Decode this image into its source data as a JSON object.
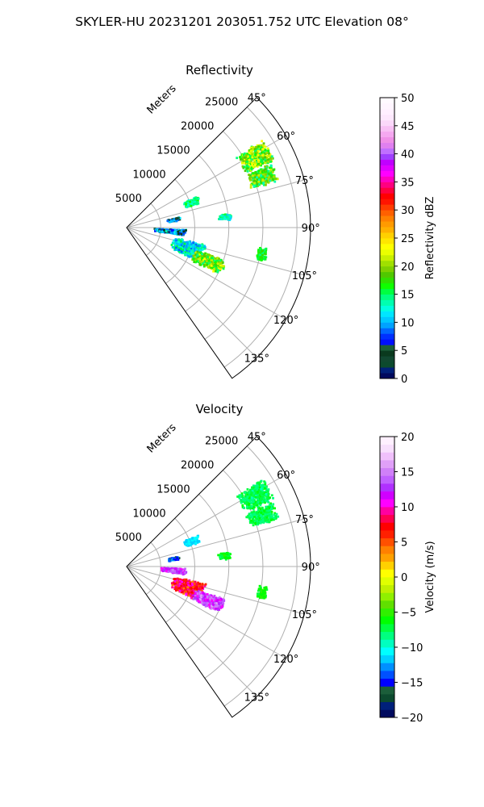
{
  "figure": {
    "suptitle": "SKYLER-HU  20231201  203051.752 UTC Elevation 08°"
  },
  "chart_data": [
    {
      "type": "heatmap",
      "title": "Reflectivity",
      "projection": "polar sector",
      "range_axis_label": "Meters",
      "range_ticks": [
        5000,
        10000,
        15000,
        20000,
        25000
      ],
      "range_limit": [
        0,
        27000
      ],
      "azimuth_limit_deg": [
        45,
        145
      ],
      "azimuth_ticks": [
        "45°",
        "60°",
        "75°",
        "90°",
        "105°",
        "120°",
        "135°"
      ],
      "azimuth_tick_values": [
        45,
        60,
        75,
        90,
        105,
        120,
        135
      ],
      "grid": true,
      "colorbar": {
        "label": "Reflectivity dBZ",
        "range": [
          0,
          50
        ],
        "ticks": [
          "0",
          "5",
          "10",
          "15",
          "20",
          "25",
          "30",
          "35",
          "40",
          "45",
          "50"
        ]
      },
      "echo_regions": [
        {
          "azimuth_deg": [
            57,
            66
          ],
          "range_m": [
            19000,
            24000
          ],
          "value_dbz": [
            14,
            24
          ]
        },
        {
          "azimuth_deg": [
            66,
            73
          ],
          "range_m": [
            19000,
            23500
          ],
          "value_dbz": [
            13,
            22
          ]
        },
        {
          "azimuth_deg": [
            66,
            72
          ],
          "range_m": [
            9000,
            11500
          ],
          "value_dbz": [
            12,
            17
          ]
        },
        {
          "azimuth_deg": [
            79,
            83
          ],
          "range_m": [
            6000,
            8000
          ],
          "value_dbz": [
            3,
            12
          ]
        },
        {
          "azimuth_deg": [
            82,
            86
          ],
          "range_m": [
            13500,
            15500
          ],
          "value_dbz": [
            10,
            17
          ]
        },
        {
          "azimuth_deg": [
            92,
            98
          ],
          "range_m": [
            4000,
            9000
          ],
          "value_dbz": [
            4,
            14
          ]
        },
        {
          "azimuth_deg": [
            102,
            116
          ],
          "range_m": [
            7000,
            12000
          ],
          "value_dbz": [
            8,
            16
          ]
        },
        {
          "azimuth_deg": [
            108,
            117
          ],
          "range_m": [
            10500,
            15500
          ],
          "value_dbz": [
            14,
            24
          ]
        },
        {
          "azimuth_deg": [
            98,
            104
          ],
          "range_m": [
            19500,
            21000
          ],
          "value_dbz": [
            14,
            18
          ]
        }
      ]
    },
    {
      "type": "heatmap",
      "title": "Velocity",
      "projection": "polar sector",
      "range_axis_label": "Meters",
      "range_ticks": [
        5000,
        10000,
        15000,
        20000,
        25000
      ],
      "range_limit": [
        0,
        27000
      ],
      "azimuth_limit_deg": [
        45,
        145
      ],
      "azimuth_ticks": [
        "45°",
        "60°",
        "75°",
        "90°",
        "105°",
        "120°",
        "135°"
      ],
      "azimuth_tick_values": [
        45,
        60,
        75,
        90,
        105,
        120,
        135
      ],
      "grid": true,
      "colorbar": {
        "label": "Velocity (m/s)",
        "range": [
          -20,
          20
        ],
        "ticks": [
          "−20",
          "−15",
          "−10",
          "−5",
          "0",
          "5",
          "10",
          "15",
          "20"
        ]
      },
      "echo_regions": [
        {
          "azimuth_deg": [
            57,
            66
          ],
          "range_m": [
            19000,
            24000
          ],
          "value_ms": [
            -9,
            -6
          ]
        },
        {
          "azimuth_deg": [
            66,
            73
          ],
          "range_m": [
            19000,
            23500
          ],
          "value_ms": [
            -9,
            -6
          ]
        },
        {
          "azimuth_deg": [
            66,
            72
          ],
          "range_m": [
            9000,
            11500
          ],
          "value_ms": [
            -12,
            -10
          ]
        },
        {
          "azimuth_deg": [
            79,
            83
          ],
          "range_m": [
            6000,
            8000
          ],
          "value_ms": [
            -17,
            -12
          ]
        },
        {
          "azimuth_deg": [
            82,
            86
          ],
          "range_m": [
            13500,
            15500
          ],
          "value_ms": [
            -8,
            -5
          ]
        },
        {
          "azimuth_deg": [
            92,
            98
          ],
          "range_m": [
            5000,
            9000
          ],
          "value_ms": [
            10,
            15
          ]
        },
        {
          "azimuth_deg": [
            102,
            116
          ],
          "range_m": [
            7000,
            12000
          ],
          "value_ms": [
            4,
            11
          ]
        },
        {
          "azimuth_deg": [
            108,
            117
          ],
          "range_m": [
            10500,
            15500
          ],
          "value_ms": [
            10,
            16
          ]
        },
        {
          "azimuth_deg": [
            98,
            104
          ],
          "range_m": [
            19500,
            21000
          ],
          "value_ms": [
            -7,
            -5
          ]
        }
      ]
    }
  ],
  "colors": {
    "grid": "#b0b0b0",
    "frame": "#000000",
    "reflectivity_scale": [
      "#000a5e",
      "#00207a",
      "#0c4a2e",
      "#114830",
      "#0a3a1e",
      "#1b5e3a",
      "#000fff",
      "#0030ff",
      "#0066ff",
      "#00a2ff",
      "#00c8ff",
      "#00e6ff",
      "#00ffe0",
      "#00ffb0",
      "#00ff80",
      "#00ff40",
      "#10ff00",
      "#30e000",
      "#50c800",
      "#7ed000",
      "#a0e000",
      "#c8f000",
      "#eaff00",
      "#ffff00",
      "#ffe600",
      "#ffd000",
      "#ffb000",
      "#ff9a00",
      "#ff8000",
      "#ff6000",
      "#ff3c00",
      "#ff1400",
      "#ff0000",
      "#ff0040",
      "#ff0080",
      "#ff00c0",
      "#ff00ff",
      "#e000ff",
      "#c000ff",
      "#a040ff",
      "#c070ff",
      "#e080f0",
      "#f090e8",
      "#f5a8f0",
      "#f8c0f5",
      "#fbd8fa",
      "#fde8fd",
      "#fff0ff",
      "#fff5ff",
      "#fffaff"
    ],
    "velocity_scale": [
      "#000a5e",
      "#00207a",
      "#0c4a2e",
      "#1b5e3a",
      "#0000ff",
      "#0050ff",
      "#0090ff",
      "#00d0ff",
      "#00ffff",
      "#00ffc0",
      "#00ff80",
      "#00ff40",
      "#00ff00",
      "#30f000",
      "#60e000",
      "#90f000",
      "#c0f000",
      "#e0ff00",
      "#ffff00",
      "#ffd000",
      "#ffa000",
      "#ff8000",
      "#ff5000",
      "#ff2000",
      "#ff0000",
      "#ff0050",
      "#ff00a0",
      "#ff00ff",
      "#d000ff",
      "#b030ff",
      "#c060ff",
      "#d080f8",
      "#e0a0f8",
      "#f0c0fb",
      "#f8dffd",
      "#fff0ff"
    ]
  }
}
